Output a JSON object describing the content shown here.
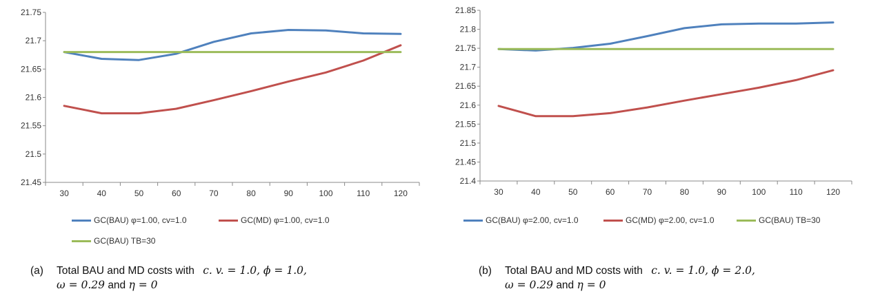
{
  "colors": {
    "blue": "#4f81bd",
    "red": "#c0504d",
    "green": "#9bbb59",
    "axis": "#888888"
  },
  "chart_data": [
    {
      "type": "line",
      "x": [
        30,
        40,
        50,
        60,
        70,
        80,
        90,
        100,
        110,
        120
      ],
      "ylim": [
        21.45,
        21.75
      ],
      "yticks": [
        "21.75",
        "21.7",
        "21.65",
        "21.6",
        "21.55",
        "21.5",
        "21.45"
      ],
      "xticks": [
        "30",
        "40",
        "50",
        "60",
        "70",
        "80",
        "90",
        "100",
        "110",
        "120"
      ],
      "grid": false,
      "legend_position": "bottom",
      "series": [
        {
          "name": "GC(BAU) φ=1.00, cv=1.0",
          "color": "#4f81bd",
          "values": [
            21.68,
            21.668,
            21.666,
            21.677,
            21.698,
            21.713,
            21.719,
            21.718,
            21.713,
            21.712
          ]
        },
        {
          "name": "GC(MD) φ=1.00, cv=1.0",
          "color": "#c0504d",
          "values": [
            21.585,
            21.572,
            21.572,
            21.58,
            21.595,
            21.611,
            21.628,
            21.644,
            21.665,
            21.692
          ]
        },
        {
          "name": "GC(BAU) TB=30",
          "color": "#9bbb59",
          "values": [
            21.68,
            21.68,
            21.68,
            21.68,
            21.68,
            21.68,
            21.68,
            21.68,
            21.68,
            21.68
          ]
        }
      ],
      "caption": {
        "label": "(a)",
        "line1_text": "Total BAU and MD costs with",
        "line1_math": "c. v. = 1.0, ϕ = 1.0,",
        "line2_math": "ω = 0.29",
        "line2_and": "and",
        "line2_math2": "η = 0"
      }
    },
    {
      "type": "line",
      "x": [
        30,
        40,
        50,
        60,
        70,
        80,
        90,
        100,
        110,
        120
      ],
      "ylim": [
        21.4,
        21.85
      ],
      "yticks": [
        "21.85",
        "21.8",
        "21.75",
        "21.7",
        "21.65",
        "21.6",
        "21.55",
        "21.5",
        "21.45",
        "21.4"
      ],
      "xticks": [
        "30",
        "40",
        "50",
        "60",
        "70",
        "80",
        "90",
        "100",
        "110",
        "120"
      ],
      "grid": false,
      "legend_position": "bottom",
      "series": [
        {
          "name": "GC(BAU) φ=2.00, cv=1.0",
          "color": "#4f81bd",
          "values": [
            21.748,
            21.744,
            21.751,
            21.762,
            21.782,
            21.803,
            21.813,
            21.815,
            21.815,
            21.818
          ]
        },
        {
          "name": "GC(MD) φ=2.00, cv=1.0",
          "color": "#c0504d",
          "values": [
            21.598,
            21.571,
            21.571,
            21.579,
            21.594,
            21.612,
            21.629,
            21.646,
            21.666,
            21.692
          ]
        },
        {
          "name": "GC(BAU) TB=30",
          "color": "#9bbb59",
          "values": [
            21.748,
            21.748,
            21.748,
            21.748,
            21.748,
            21.748,
            21.748,
            21.748,
            21.748,
            21.748
          ]
        }
      ],
      "caption": {
        "label": "(b)",
        "line1_text": "Total BAU and MD costs with",
        "line1_math": "c. v. = 1.0, ϕ = 2.0,",
        "line2_math": "ω = 0.29",
        "line2_and": "and",
        "line2_math2": "η = 0"
      }
    }
  ]
}
